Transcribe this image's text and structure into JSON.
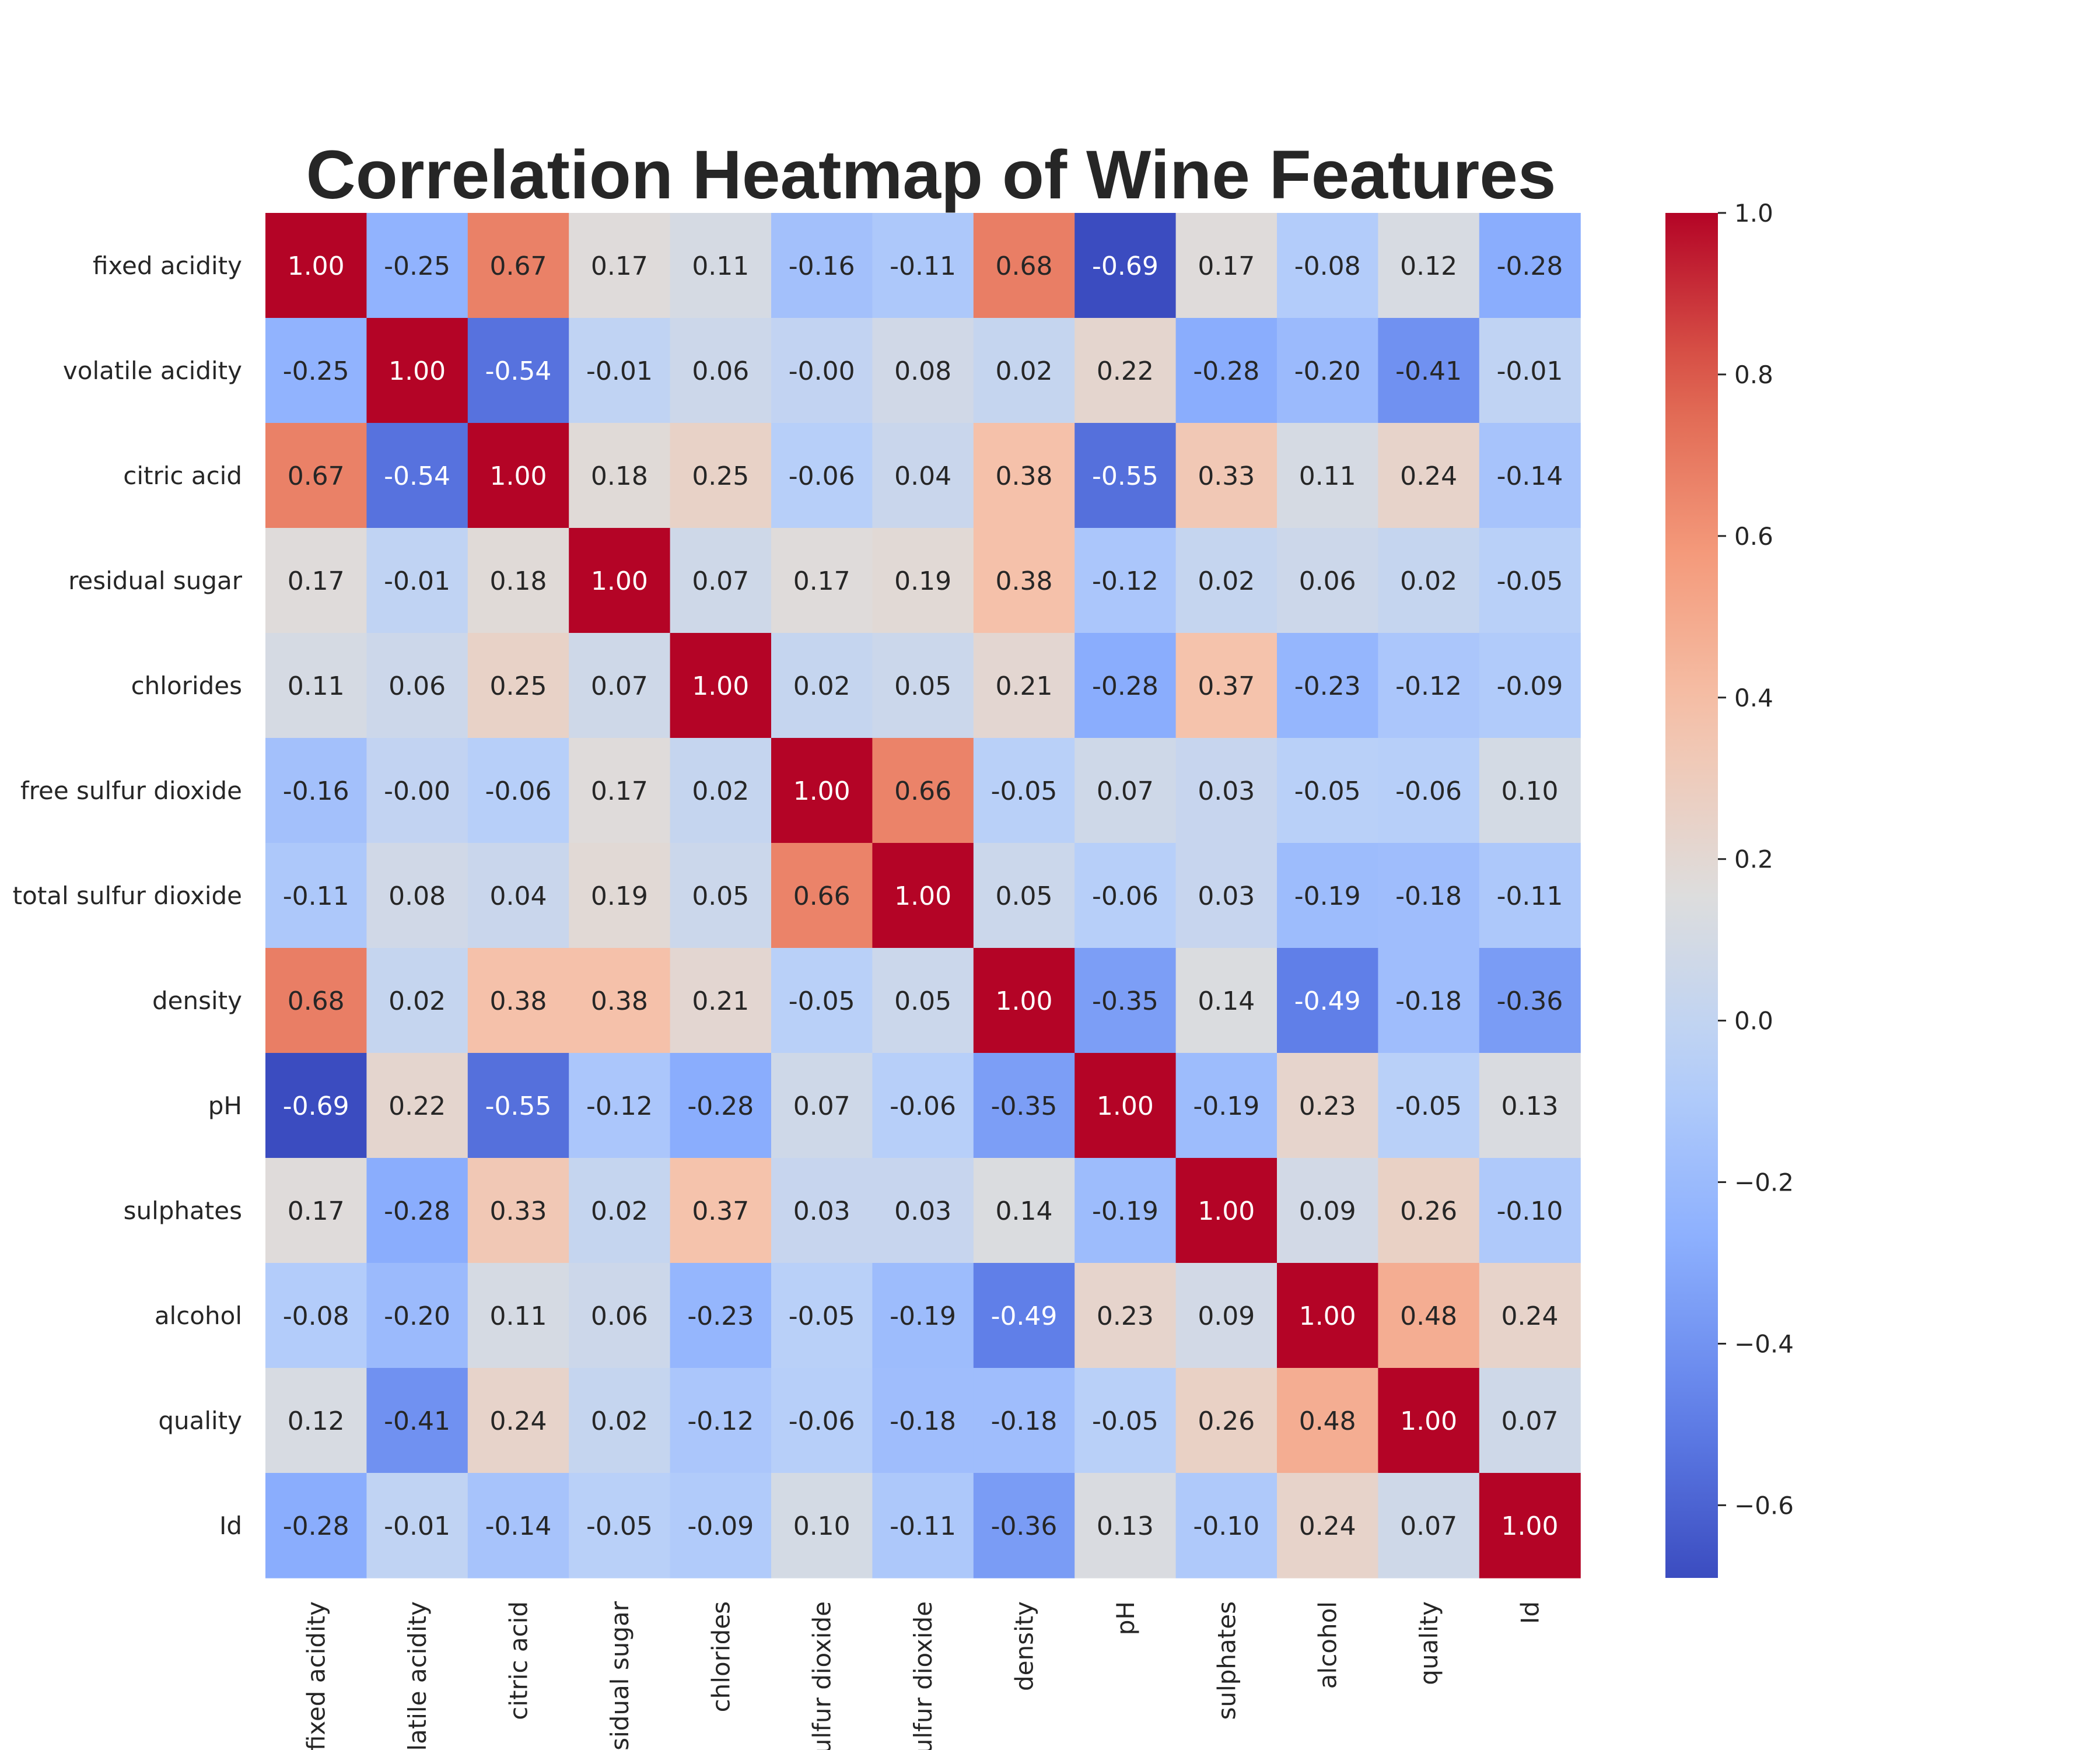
{
  "chart_data": {
    "type": "heatmap",
    "title": "Correlation Heatmap of Wine Features",
    "colormap": "coolwarm",
    "vmin": -0.69,
    "vmax": 1.0,
    "row_labels": [
      "fixed acidity",
      "volatile acidity",
      "citric acid",
      "residual sugar",
      "chlorides",
      "free sulfur dioxide",
      "total sulfur dioxide",
      "density",
      "pH",
      "sulphates",
      "alcohol",
      "quality",
      "Id"
    ],
    "col_labels": [
      "fixed acidity",
      "volatile acidity",
      "citric acid",
      "residual sugar",
      "chlorides",
      "free sulfur dioxide",
      "total sulfur dioxide",
      "density",
      "pH",
      "sulphates",
      "alcohol",
      "quality",
      "Id"
    ],
    "values": [
      [
        1.0,
        -0.25,
        0.67,
        0.17,
        0.11,
        -0.16,
        -0.11,
        0.68,
        -0.69,
        0.17,
        -0.08,
        0.12,
        -0.28
      ],
      [
        -0.25,
        1.0,
        -0.54,
        -0.01,
        0.06,
        -0.0,
        0.08,
        0.02,
        0.22,
        -0.28,
        -0.2,
        -0.41,
        -0.01
      ],
      [
        0.67,
        -0.54,
        1.0,
        0.18,
        0.25,
        -0.06,
        0.04,
        0.38,
        -0.55,
        0.33,
        0.11,
        0.24,
        -0.14
      ],
      [
        0.17,
        -0.01,
        0.18,
        1.0,
        0.07,
        0.17,
        0.19,
        0.38,
        -0.12,
        0.02,
        0.06,
        0.02,
        -0.05
      ],
      [
        0.11,
        0.06,
        0.25,
        0.07,
        1.0,
        0.02,
        0.05,
        0.21,
        -0.28,
        0.37,
        -0.23,
        -0.12,
        -0.09
      ],
      [
        -0.16,
        -0.0,
        -0.06,
        0.17,
        0.02,
        1.0,
        0.66,
        -0.05,
        0.07,
        0.03,
        -0.05,
        -0.06,
        0.1
      ],
      [
        -0.11,
        0.08,
        0.04,
        0.19,
        0.05,
        0.66,
        1.0,
        0.05,
        -0.06,
        0.03,
        -0.19,
        -0.18,
        -0.11
      ],
      [
        0.68,
        0.02,
        0.38,
        0.38,
        0.21,
        -0.05,
        0.05,
        1.0,
        -0.35,
        0.14,
        -0.49,
        -0.18,
        -0.36
      ],
      [
        -0.69,
        0.22,
        -0.55,
        -0.12,
        -0.28,
        0.07,
        -0.06,
        -0.35,
        1.0,
        -0.19,
        0.23,
        -0.05,
        0.13
      ],
      [
        0.17,
        -0.28,
        0.33,
        0.02,
        0.37,
        0.03,
        0.03,
        0.14,
        -0.19,
        1.0,
        0.09,
        0.26,
        -0.1
      ],
      [
        -0.08,
        -0.2,
        0.11,
        0.06,
        -0.23,
        -0.05,
        -0.19,
        -0.49,
        0.23,
        0.09,
        1.0,
        0.48,
        0.24
      ],
      [
        0.12,
        -0.41,
        0.24,
        0.02,
        -0.12,
        -0.06,
        -0.18,
        -0.18,
        -0.05,
        0.26,
        0.48,
        1.0,
        0.07
      ],
      [
        -0.28,
        -0.01,
        -0.14,
        -0.05,
        -0.09,
        0.1,
        -0.11,
        -0.36,
        0.13,
        -0.1,
        0.24,
        0.07,
        1.0
      ]
    ],
    "colorbar_ticks": [
      1.0,
      0.8,
      0.6,
      0.4,
      0.2,
      0.0,
      -0.2,
      -0.4,
      -0.6
    ],
    "colorbar_tick_labels": [
      "1.0",
      "0.8",
      "0.6",
      "0.4",
      "0.2",
      "0.0",
      "−0.2",
      "−0.4",
      "−0.6"
    ],
    "annotation_format": "0.00",
    "grid": false
  }
}
